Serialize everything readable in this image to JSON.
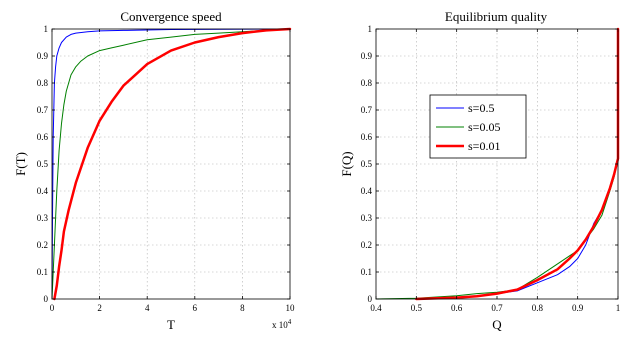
{
  "chart_data": [
    {
      "type": "line",
      "title": "Convergence speed",
      "xlabel": "T",
      "ylabel": "F(T)",
      "x_multiplier_label": "x 10",
      "x_multiplier_exp": "4",
      "xlim": [
        0,
        10
      ],
      "ylim": [
        0,
        1
      ],
      "xticks": [
        "0",
        "2",
        "4",
        "6",
        "8",
        "10"
      ],
      "yticks": [
        "0",
        "0.1",
        "0.2",
        "0.3",
        "0.4",
        "0.5",
        "0.6",
        "0.7",
        "0.8",
        "0.9",
        "1"
      ],
      "grid": true,
      "series": [
        {
          "color": "#0000ff",
          "width": 1,
          "x": [
            0,
            0.02,
            0.05,
            0.1,
            0.15,
            0.2,
            0.3,
            0.4,
            0.6,
            0.8,
            1,
            1.5,
            2,
            3,
            5,
            10
          ],
          "y": [
            0,
            0.3,
            0.6,
            0.8,
            0.86,
            0.9,
            0.93,
            0.95,
            0.97,
            0.98,
            0.985,
            0.99,
            0.993,
            0.995,
            0.998,
            1
          ]
        },
        {
          "color": "#008000",
          "width": 1,
          "x": [
            0,
            0.05,
            0.1,
            0.2,
            0.3,
            0.4,
            0.5,
            0.6,
            0.8,
            1,
            1.2,
            1.5,
            2,
            2.5,
            3,
            4,
            5,
            6,
            7,
            8,
            10
          ],
          "y": [
            0,
            0.1,
            0.2,
            0.4,
            0.55,
            0.65,
            0.72,
            0.77,
            0.83,
            0.86,
            0.88,
            0.9,
            0.92,
            0.93,
            0.94,
            0.96,
            0.97,
            0.98,
            0.985,
            0.99,
            1
          ]
        },
        {
          "color": "#ff0000",
          "width": 2.5,
          "x": [
            0.1,
            0.2,
            0.3,
            0.4,
            0.5,
            0.7,
            1,
            1.5,
            2,
            2.5,
            3,
            3.5,
            4,
            5,
            6,
            7,
            8,
            9,
            10
          ],
          "y": [
            0,
            0.05,
            0.12,
            0.18,
            0.25,
            0.33,
            0.43,
            0.56,
            0.66,
            0.73,
            0.79,
            0.83,
            0.87,
            0.92,
            0.95,
            0.97,
            0.985,
            0.995,
            1
          ]
        }
      ]
    },
    {
      "type": "line",
      "title": "Equilibrium quality",
      "xlabel": "Q",
      "ylabel": "F(Q)",
      "xlim": [
        0.4,
        1
      ],
      "ylim": [
        0,
        1
      ],
      "xticks": [
        "0.4",
        "0.5",
        "0.6",
        "0.7",
        "0.8",
        "0.9",
        "1"
      ],
      "yticks": [
        "0",
        "0.1",
        "0.2",
        "0.3",
        "0.4",
        "0.5",
        "0.6",
        "0.7",
        "0.8",
        "0.9",
        "1"
      ],
      "grid": true,
      "legend": {
        "position": "upper-left",
        "entries": [
          {
            "label": "s=0.5",
            "color": "#0000ff",
            "width": 1
          },
          {
            "label": "s=0.05",
            "color": "#008000",
            "width": 1
          },
          {
            "label": "s=0.01",
            "color": "#ff0000",
            "width": 2.5
          }
        ]
      },
      "series": [
        {
          "color": "#0000ff",
          "width": 1,
          "x": [
            0.5,
            0.55,
            0.6,
            0.65,
            0.7,
            0.75,
            0.8,
            0.85,
            0.88,
            0.9,
            0.92,
            0.94,
            0.96,
            0.98,
            0.99,
            1,
            1,
            1
          ],
          "y": [
            0,
            0.003,
            0.006,
            0.01,
            0.02,
            0.03,
            0.06,
            0.09,
            0.12,
            0.15,
            0.2,
            0.28,
            0.33,
            0.41,
            0.46,
            0.52,
            0.8,
            1
          ]
        },
        {
          "color": "#008000",
          "width": 1,
          "x": [
            0.4,
            0.5,
            0.6,
            0.65,
            0.7,
            0.75,
            0.8,
            0.85,
            0.88,
            0.9,
            0.92,
            0.94,
            0.96,
            0.98,
            0.99,
            1,
            1,
            1
          ],
          "y": [
            0,
            0.003,
            0.012,
            0.02,
            0.025,
            0.035,
            0.08,
            0.13,
            0.16,
            0.18,
            0.22,
            0.26,
            0.31,
            0.4,
            0.45,
            0.52,
            0.8,
            1
          ]
        },
        {
          "color": "#ff0000",
          "width": 2.5,
          "x": [
            0.5,
            0.6,
            0.65,
            0.7,
            0.75,
            0.8,
            0.85,
            0.88,
            0.9,
            0.92,
            0.94,
            0.96,
            0.98,
            0.99,
            1,
            1,
            1
          ],
          "y": [
            0,
            0.005,
            0.01,
            0.02,
            0.035,
            0.07,
            0.11,
            0.15,
            0.18,
            0.22,
            0.27,
            0.33,
            0.41,
            0.46,
            0.52,
            0.8,
            1
          ]
        }
      ]
    }
  ]
}
